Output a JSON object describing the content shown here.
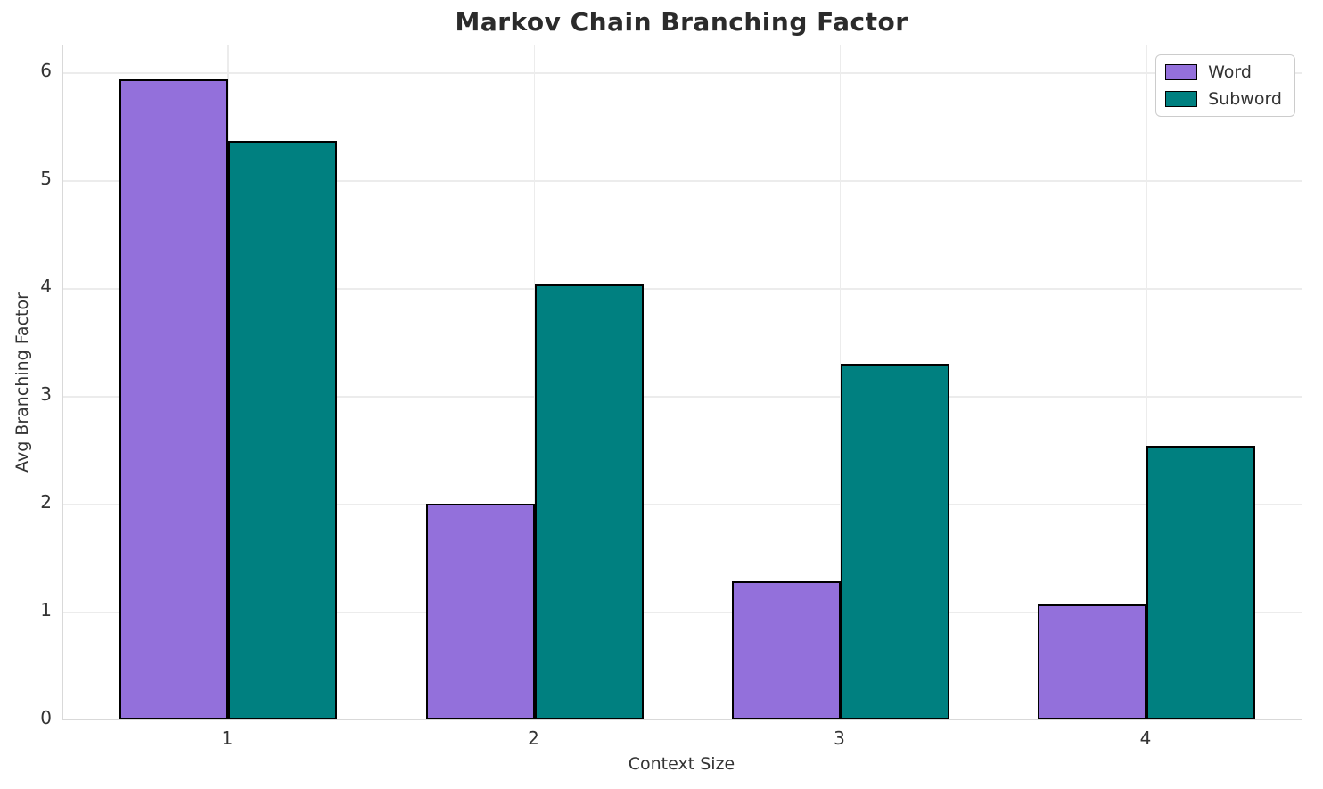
{
  "chart_data": {
    "type": "bar",
    "title": "Markov Chain Branching Factor",
    "xlabel": "Context Size",
    "ylabel": "Avg Branching Factor",
    "categories": [
      "1",
      "2",
      "3",
      "4"
    ],
    "series": [
      {
        "name": "Word",
        "color": "#9370DB",
        "values": [
          5.93,
          2.0,
          1.28,
          1.07
        ]
      },
      {
        "name": "Subword",
        "color": "#008080",
        "values": [
          5.36,
          4.03,
          3.3,
          2.54
        ]
      }
    ],
    "ylim": [
      0,
      6.25
    ],
    "yticks": [
      0,
      1,
      2,
      3,
      4,
      5,
      6
    ],
    "grid": true,
    "legend_position": "upper right",
    "bar_edge_color": "#000000",
    "grid_color": "#ececec",
    "spine_color": "#d9d9d9"
  }
}
